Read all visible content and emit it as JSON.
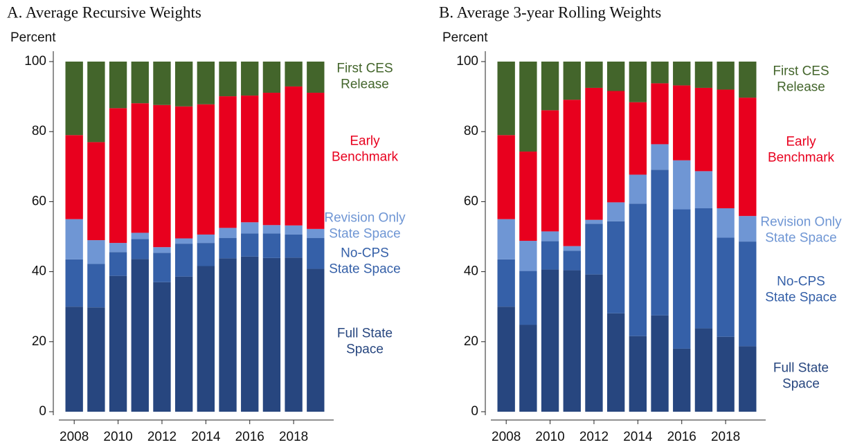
{
  "chart_data": [
    {
      "type": "bar",
      "stacked": true,
      "title": "A. Average Recursive Weights",
      "y_label": "Percent",
      "x": [
        2008,
        2009,
        2010,
        2011,
        2012,
        2013,
        2014,
        2015,
        2016,
        2017,
        2018,
        2019
      ],
      "xlim": [
        2007.3,
        2019.7
      ],
      "xticks": [
        2008,
        2010,
        2012,
        2014,
        2016,
        2018
      ],
      "ylim": [
        0,
        100
      ],
      "yticks": [
        0,
        20,
        40,
        60,
        80,
        100
      ],
      "series": [
        {
          "name": "Full State\nSpace",
          "color": "#27467f",
          "values": [
            30,
            29.8,
            38.8,
            43.6,
            37,
            38.6,
            41.6,
            43.8,
            44.3,
            43.9,
            44,
            40.8
          ]
        },
        {
          "name": "No-CPS\nState Space",
          "color": "#3560a8",
          "values": [
            13.5,
            12.4,
            6.8,
            5.7,
            8.4,
            9.4,
            6.6,
            5.8,
            6.6,
            7,
            6.6,
            8.8
          ]
        },
        {
          "name": "Revision Only\nState Space",
          "color": "#6f96d4",
          "values": [
            11.5,
            6.8,
            2.6,
            1.8,
            1.6,
            1.5,
            2.4,
            2.9,
            3.2,
            2.4,
            2.6,
            2.6
          ]
        },
        {
          "name": "Early\nBenchmark",
          "color": "#e8001e",
          "values": [
            24,
            28,
            38.5,
            37,
            40.6,
            37.7,
            37.2,
            37.6,
            36.2,
            37.8,
            39.7,
            38.9
          ]
        },
        {
          "name": "First CES\nRelease",
          "color": "#43652b",
          "values": [
            21,
            23,
            13.3,
            11.9,
            12.4,
            12.8,
            12.2,
            9.9,
            9.7,
            8.9,
            7.1,
            8.9
          ]
        }
      ]
    },
    {
      "type": "bar",
      "stacked": true,
      "title": "B. Average 3-year Rolling Weights",
      "y_label": "Percent",
      "x": [
        2008,
        2009,
        2010,
        2011,
        2012,
        2013,
        2014,
        2015,
        2016,
        2017,
        2018,
        2019
      ],
      "xlim": [
        2007.3,
        2019.7
      ],
      "xticks": [
        2008,
        2010,
        2012,
        2014,
        2016,
        2018
      ],
      "ylim": [
        0,
        100
      ],
      "yticks": [
        0,
        20,
        40,
        60,
        80,
        100
      ],
      "series": [
        {
          "name": "Full State\nSpace",
          "color": "#27467f",
          "values": [
            30,
            24.8,
            40.6,
            40.4,
            39.2,
            28.1,
            21.6,
            27.5,
            18,
            23.8,
            21.4,
            18.7
          ]
        },
        {
          "name": "No-CPS\nState Space",
          "color": "#3560a8",
          "values": [
            13.5,
            15.4,
            8.1,
            5.6,
            14.5,
            26.3,
            37.8,
            41.6,
            39.8,
            34.3,
            28.3,
            29.9
          ]
        },
        {
          "name": "Revision Only\nState Space",
          "color": "#6f96d4",
          "values": [
            11.5,
            8.6,
            2.8,
            1.3,
            1.1,
            5.4,
            8.3,
            7.3,
            14,
            10.6,
            8.4,
            7.3
          ]
        },
        {
          "name": "Early\nBenchmark",
          "color": "#e8001e",
          "values": [
            24,
            25.5,
            34.6,
            41.8,
            37.7,
            31.8,
            20.7,
            17.4,
            21.4,
            23.8,
            33.9,
            33.8
          ]
        },
        {
          "name": "First CES\nRelease",
          "color": "#43652b",
          "values": [
            21,
            25.7,
            13.9,
            10.9,
            7.5,
            8.4,
            11.6,
            6.2,
            6.8,
            7.5,
            8,
            10.3
          ]
        }
      ]
    }
  ]
}
